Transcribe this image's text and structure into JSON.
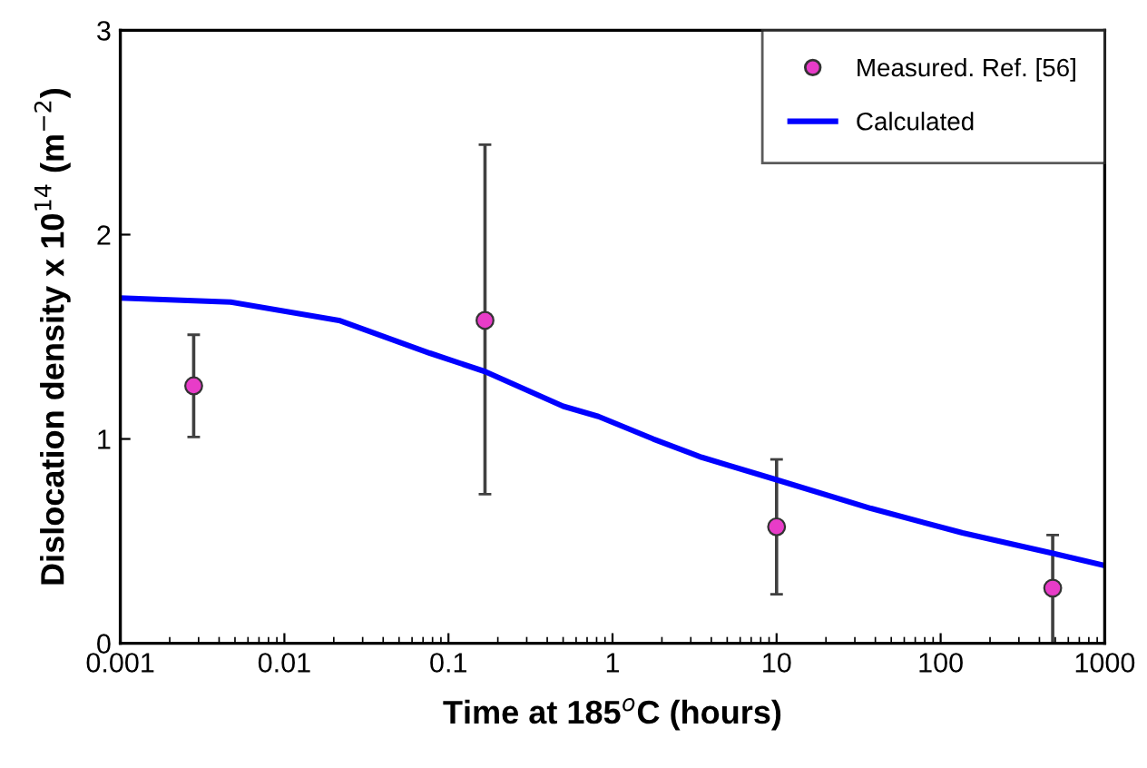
{
  "chart_data": {
    "type": "scatter",
    "xlabel": "Time at 185$^{o}$C (hours)",
    "ylabel": "Dislocation density x 10$^{14}$ (m$^{−2}$)",
    "log": "x",
    "xlim": [
      0.001,
      1000
    ],
    "xticks": [
      0.001,
      0.01,
      0.1,
      1,
      10,
      100,
      1000
    ],
    "ylim": [
      0,
      3
    ],
    "yticks": [
      0,
      1,
      2,
      3
    ],
    "grid": false,
    "legend": "top right",
    "series": [
      {
        "name": "Measured. Ref. [56]",
        "color": "#e83cc8",
        "marker": "circle",
        "x": [
          0.0028,
          0.167,
          10,
          482
        ],
        "values": [
          1.26,
          1.58,
          0.57,
          0.27
        ],
        "errors": [
          [
            1.01,
            1.51
          ],
          [
            0.73,
            2.44
          ],
          [
            0.24,
            0.9
          ],
          [
            0,
            0.53
          ]
        ]
      },
      {
        "name": "Calculated",
        "type": "line",
        "color": "#0000ff",
        "line_style": "solid",
        "marker": "none",
        "x": [
          0.001,
          0.0047,
          0.0215,
          0.077,
          0.167,
          0.5,
          0.82,
          1.77,
          3.5,
          10,
          37.6,
          136,
          482,
          1000
        ],
        "values": [
          1.69,
          1.67,
          1.58,
          1.42,
          1.33,
          1.16,
          1.11,
          1.0,
          0.91,
          0.8,
          0.66,
          0.54,
          0.44,
          0.38
        ]
      }
    ]
  }
}
